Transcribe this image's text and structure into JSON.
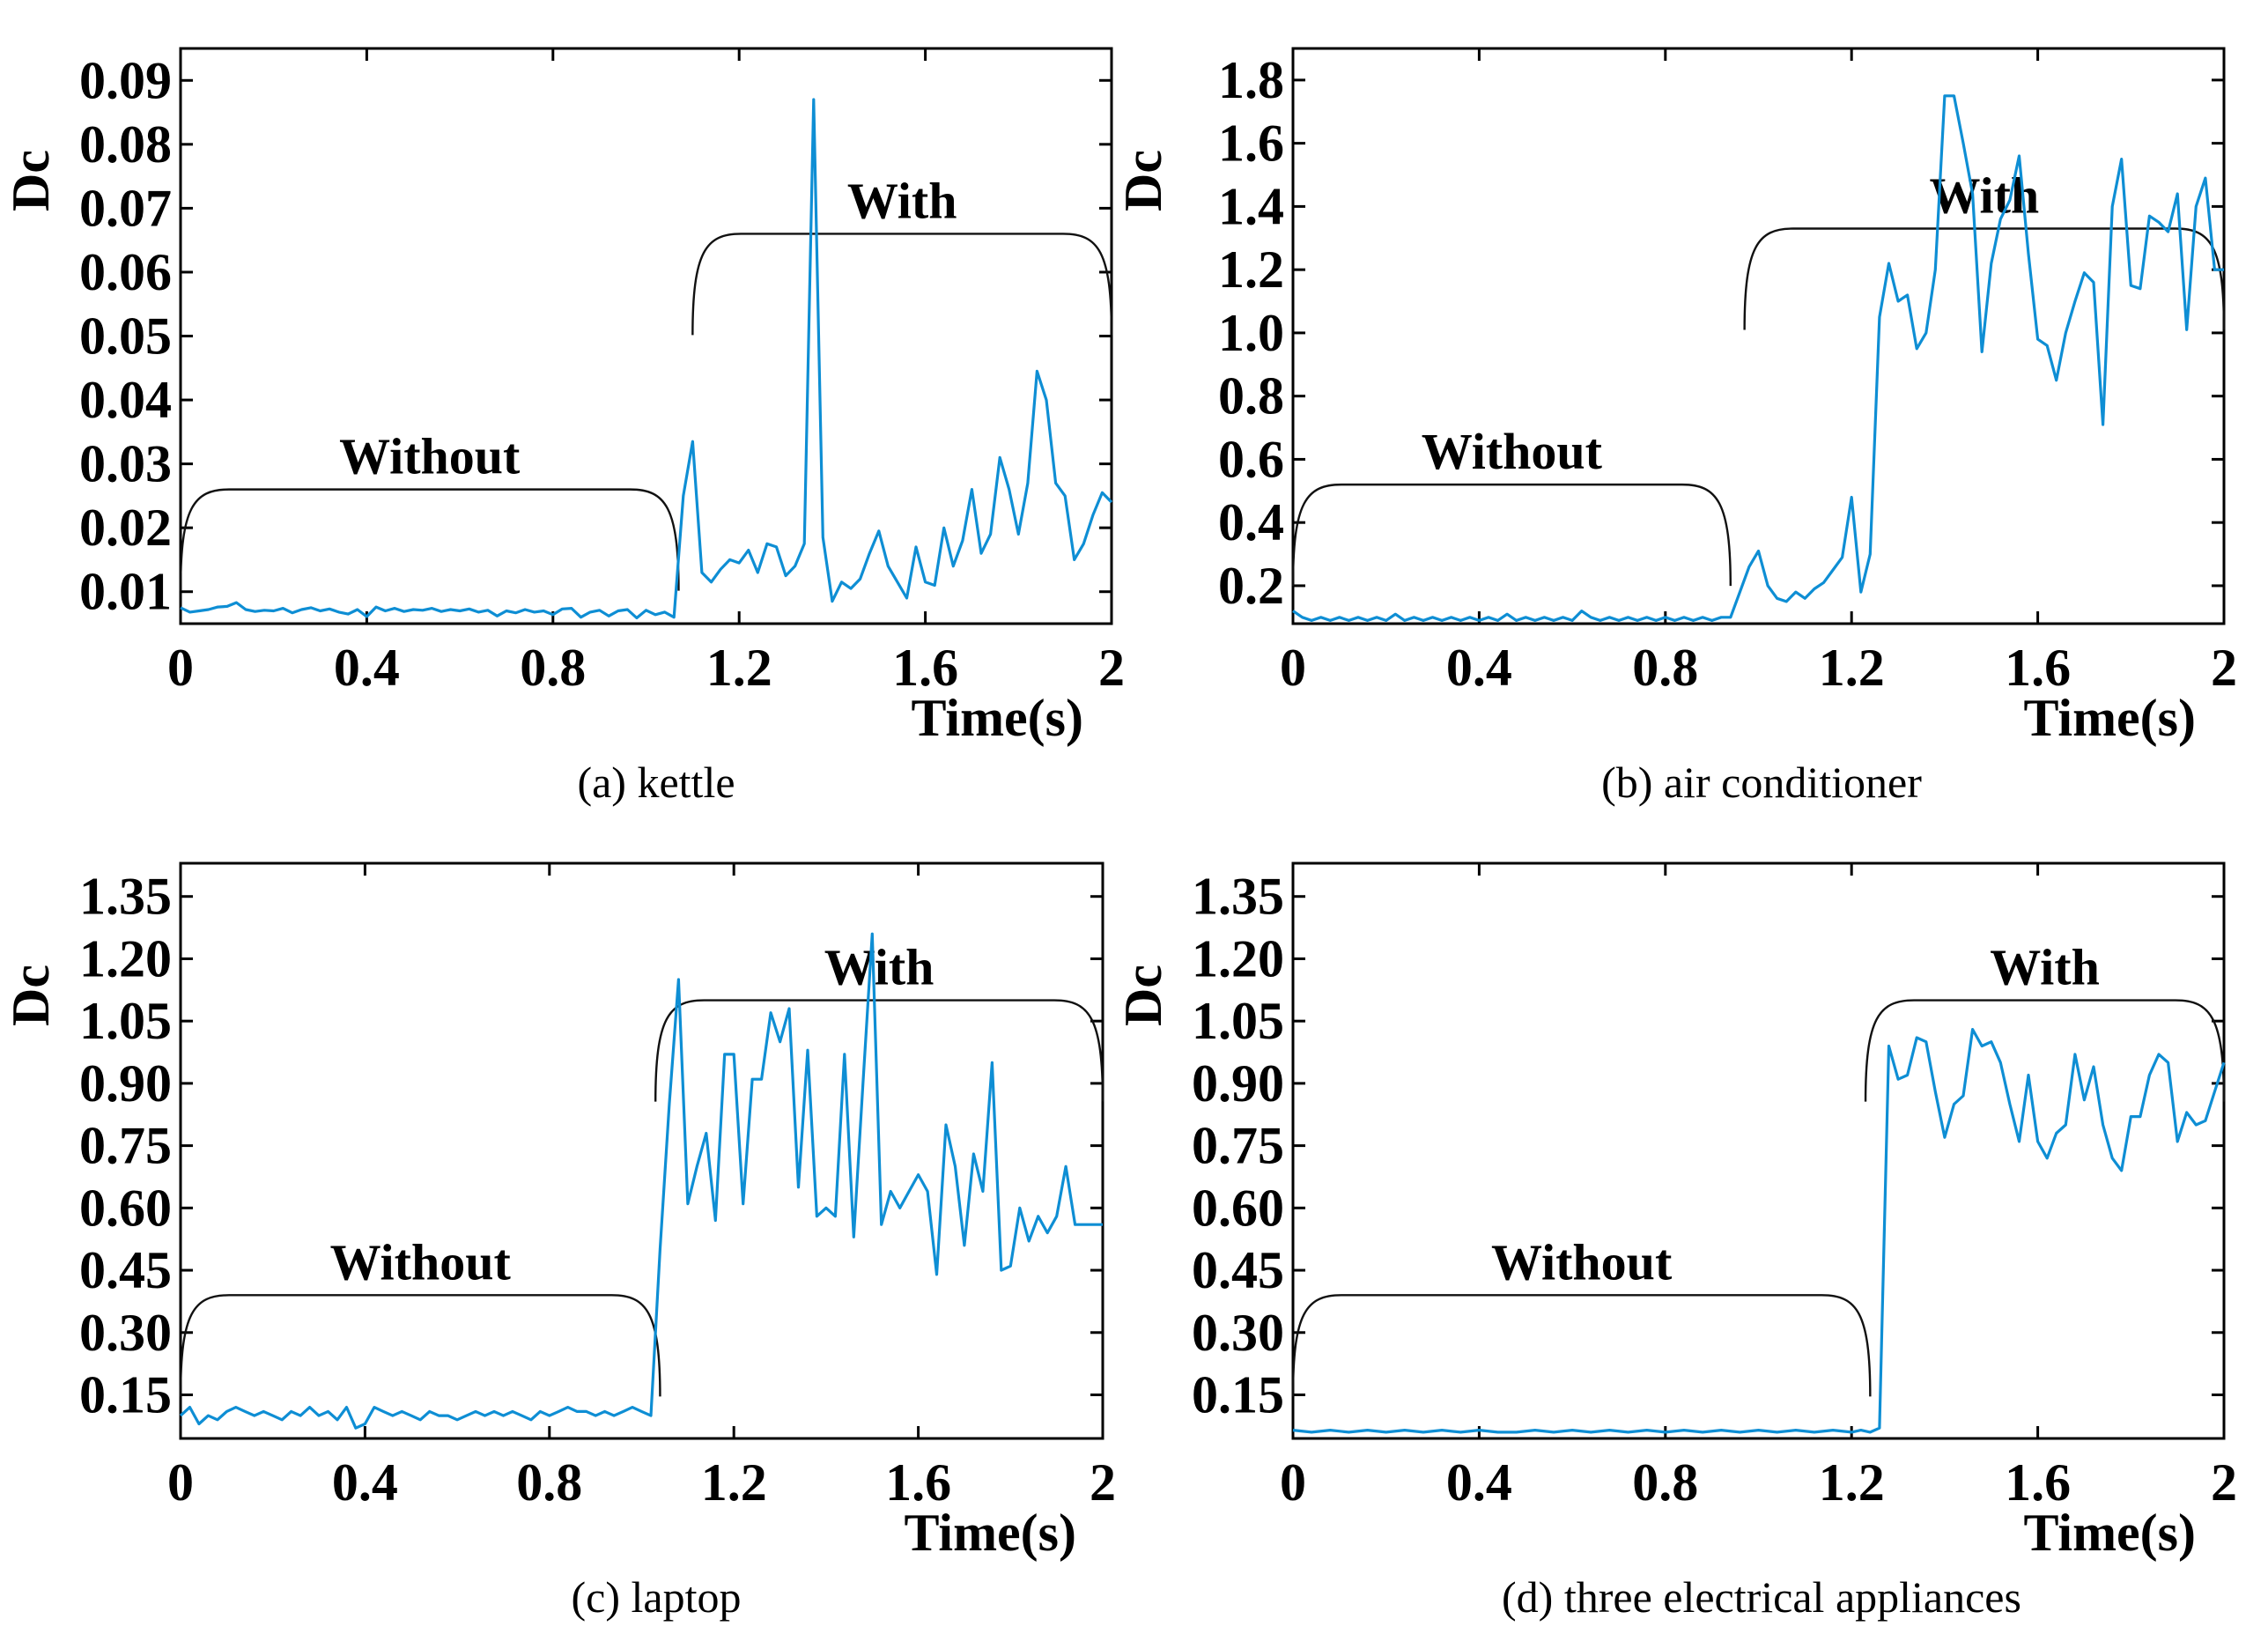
{
  "chart_data": [
    {
      "type": "line",
      "caption": "(a) kettle",
      "xlabel": "Time(s)",
      "ylabel": "Dc",
      "xlim": [
        0,
        2
      ],
      "ylim": [
        0.005,
        0.095
      ],
      "xticks": [
        0,
        0.4,
        0.8,
        1.2,
        1.6,
        2
      ],
      "xtick_labels": [
        "0",
        "0.4",
        "0.8",
        "1.2",
        "1.6",
        "2"
      ],
      "yticks": [
        0.01,
        0.02,
        0.03,
        0.04,
        0.05,
        0.06,
        0.07,
        0.08,
        0.09
      ],
      "ytick_labels": [
        "0.01",
        "0.02",
        "0.03",
        "0.04",
        "0.05",
        "0.06",
        "0.07",
        "0.08",
        "0.09"
      ],
      "annotations": [
        {
          "text": "Without",
          "x_start": 0,
          "x_end": 1.07,
          "y": 0.026
        },
        {
          "text": "With",
          "x_start": 1.1,
          "x_end": 2.0,
          "y": 0.066
        }
      ],
      "series": [
        {
          "name": "Dc",
          "x": [
            0,
            0.02,
            0.04,
            0.06,
            0.08,
            0.1,
            0.12,
            0.14,
            0.16,
            0.18,
            0.2,
            0.22,
            0.24,
            0.26,
            0.28,
            0.3,
            0.32,
            0.34,
            0.36,
            0.38,
            0.4,
            0.42,
            0.44,
            0.46,
            0.48,
            0.5,
            0.52,
            0.54,
            0.56,
            0.58,
            0.6,
            0.62,
            0.64,
            0.66,
            0.68,
            0.7,
            0.72,
            0.74,
            0.76,
            0.78,
            0.8,
            0.82,
            0.84,
            0.86,
            0.88,
            0.9,
            0.92,
            0.94,
            0.96,
            0.98,
            1.0,
            1.02,
            1.04,
            1.06,
            1.08,
            1.1,
            1.12,
            1.14,
            1.16,
            1.18,
            1.2,
            1.22,
            1.24,
            1.26,
            1.28,
            1.3,
            1.32,
            1.34,
            1.36,
            1.38,
            1.4,
            1.42,
            1.44,
            1.46,
            1.48,
            1.5,
            1.52,
            1.54,
            1.56,
            1.58,
            1.6,
            1.62,
            1.64,
            1.66,
            1.68,
            1.7,
            1.72,
            1.74,
            1.76,
            1.78,
            1.8,
            1.82,
            1.84,
            1.86,
            1.88,
            1.9,
            1.92,
            1.94,
            1.96,
            1.98,
            2.0
          ],
          "values": [
            0.0075,
            0.0068,
            0.007,
            0.0072,
            0.0076,
            0.0077,
            0.0083,
            0.0072,
            0.0069,
            0.0071,
            0.007,
            0.0074,
            0.0067,
            0.0072,
            0.0075,
            0.007,
            0.0073,
            0.0068,
            0.0065,
            0.0072,
            0.0061,
            0.0076,
            0.007,
            0.0074,
            0.0069,
            0.0072,
            0.0071,
            0.0074,
            0.0069,
            0.0072,
            0.007,
            0.0073,
            0.0068,
            0.0071,
            0.0062,
            0.007,
            0.0067,
            0.0072,
            0.0068,
            0.007,
            0.0064,
            0.0073,
            0.0074,
            0.006,
            0.0068,
            0.0071,
            0.0062,
            0.007,
            0.0072,
            0.0059,
            0.0071,
            0.0064,
            0.0068,
            0.006,
            0.025,
            0.0335,
            0.013,
            0.0115,
            0.0135,
            0.015,
            0.0145,
            0.0165,
            0.013,
            0.0175,
            0.017,
            0.0125,
            0.014,
            0.0175,
            0.087,
            0.0185,
            0.0085,
            0.0115,
            0.0105,
            0.012,
            0.016,
            0.0195,
            0.014,
            0.0115,
            0.009,
            0.017,
            0.0115,
            0.011,
            0.02,
            0.014,
            0.018,
            0.026,
            0.016,
            0.019,
            0.031,
            0.026,
            0.019,
            0.027,
            0.0445,
            0.04,
            0.027,
            0.025,
            0.015,
            0.0175,
            0.022,
            0.0255,
            0.024
          ]
        }
      ]
    },
    {
      "type": "line",
      "caption": "(b) air conditioner",
      "xlabel": "Time(s)",
      "ylabel": "Dc",
      "xlim": [
        0,
        2
      ],
      "ylim": [
        0.08,
        1.9
      ],
      "xticks": [
        0,
        0.4,
        0.8,
        1.2,
        1.6,
        2
      ],
      "xtick_labels": [
        "0",
        "0.4",
        "0.8",
        "1.2",
        "1.6",
        "2"
      ],
      "yticks": [
        0.2,
        0.4,
        0.6,
        0.8,
        1.0,
        1.2,
        1.4,
        1.6,
        1.8
      ],
      "ytick_labels": [
        "0.2",
        "0.4",
        "0.6",
        "0.8",
        "1.0",
        "1.2",
        "1.4",
        "1.6",
        "1.8"
      ],
      "annotations": [
        {
          "text": "Without",
          "x_start": 0,
          "x_end": 0.94,
          "y": 0.52
        },
        {
          "text": "With",
          "x_start": 0.97,
          "x_end": 2.0,
          "y": 1.33
        }
      ],
      "series": [
        {
          "name": "Dc",
          "x": [
            0,
            0.02,
            0.04,
            0.06,
            0.08,
            0.1,
            0.12,
            0.14,
            0.16,
            0.18,
            0.2,
            0.22,
            0.24,
            0.26,
            0.28,
            0.3,
            0.32,
            0.34,
            0.36,
            0.38,
            0.4,
            0.42,
            0.44,
            0.46,
            0.48,
            0.5,
            0.52,
            0.54,
            0.56,
            0.58,
            0.6,
            0.62,
            0.64,
            0.66,
            0.68,
            0.7,
            0.72,
            0.74,
            0.76,
            0.78,
            0.8,
            0.82,
            0.84,
            0.86,
            0.88,
            0.9,
            0.92,
            0.94,
            0.96,
            0.98,
            1.0,
            1.02,
            1.04,
            1.06,
            1.08,
            1.1,
            1.12,
            1.14,
            1.16,
            1.18,
            1.2,
            1.22,
            1.24,
            1.26,
            1.28,
            1.3,
            1.32,
            1.34,
            1.36,
            1.38,
            1.4,
            1.42,
            1.44,
            1.46,
            1.48,
            1.5,
            1.52,
            1.54,
            1.56,
            1.58,
            1.6,
            1.62,
            1.64,
            1.66,
            1.68,
            1.7,
            1.72,
            1.74,
            1.76,
            1.78,
            1.8,
            1.82,
            1.84,
            1.86,
            1.88,
            1.9,
            1.92,
            1.94,
            1.96,
            1.98,
            2.0
          ],
          "values": [
            0.12,
            0.1,
            0.09,
            0.1,
            0.09,
            0.1,
            0.09,
            0.1,
            0.09,
            0.1,
            0.09,
            0.11,
            0.09,
            0.1,
            0.09,
            0.1,
            0.09,
            0.1,
            0.09,
            0.1,
            0.09,
            0.1,
            0.09,
            0.11,
            0.09,
            0.1,
            0.09,
            0.1,
            0.09,
            0.1,
            0.09,
            0.12,
            0.1,
            0.09,
            0.1,
            0.09,
            0.1,
            0.09,
            0.1,
            0.09,
            0.1,
            0.09,
            0.1,
            0.09,
            0.1,
            0.09,
            0.1,
            0.1,
            0.18,
            0.26,
            0.31,
            0.2,
            0.16,
            0.15,
            0.18,
            0.16,
            0.19,
            0.21,
            0.25,
            0.29,
            0.48,
            0.18,
            0.3,
            1.05,
            1.22,
            1.1,
            1.12,
            0.95,
            1.0,
            1.2,
            1.75,
            1.75,
            1.6,
            1.44,
            0.94,
            1.22,
            1.36,
            1.42,
            1.56,
            1.25,
            0.98,
            0.96,
            0.85,
            1.0,
            1.1,
            1.19,
            1.16,
            0.71,
            1.4,
            1.55,
            1.15,
            1.14,
            1.37,
            1.35,
            1.32,
            1.44,
            1.01,
            1.4,
            1.49,
            1.2,
            1.2
          ]
        }
      ]
    },
    {
      "type": "line",
      "caption": "(c) laptop",
      "xlabel": "Time(s)",
      "ylabel": "Dc",
      "xlim": [
        0,
        2
      ],
      "ylim": [
        0.045,
        1.43
      ],
      "xticks": [
        0,
        0.4,
        0.8,
        1.2,
        1.6,
        2
      ],
      "xtick_labels": [
        "0",
        "0.4",
        "0.8",
        "1.2",
        "1.6",
        "2"
      ],
      "yticks": [
        0.15,
        0.3,
        0.45,
        0.6,
        0.75,
        0.9,
        1.05,
        1.2,
        1.35
      ],
      "ytick_labels": [
        "0.15",
        "0.30",
        "0.45",
        "0.60",
        "0.75",
        "0.90",
        "1.05",
        "1.20",
        "1.35"
      ],
      "annotations": [
        {
          "text": "Without",
          "x_start": 0,
          "x_end": 1.04,
          "y": 0.39
        },
        {
          "text": "With",
          "x_start": 1.03,
          "x_end": 2.0,
          "y": 1.1
        }
      ],
      "series": [
        {
          "name": "Dc",
          "x": [
            0,
            0.02,
            0.04,
            0.06,
            0.08,
            0.1,
            0.12,
            0.14,
            0.16,
            0.18,
            0.2,
            0.22,
            0.24,
            0.26,
            0.28,
            0.3,
            0.32,
            0.34,
            0.36,
            0.38,
            0.4,
            0.42,
            0.44,
            0.46,
            0.48,
            0.5,
            0.52,
            0.54,
            0.56,
            0.58,
            0.6,
            0.62,
            0.64,
            0.66,
            0.68,
            0.7,
            0.72,
            0.74,
            0.76,
            0.78,
            0.8,
            0.82,
            0.84,
            0.86,
            0.88,
            0.9,
            0.92,
            0.94,
            0.96,
            0.98,
            1.0,
            1.02,
            1.04,
            1.06,
            1.08,
            1.1,
            1.12,
            1.14,
            1.16,
            1.18,
            1.2,
            1.22,
            1.24,
            1.26,
            1.28,
            1.3,
            1.32,
            1.34,
            1.36,
            1.38,
            1.4,
            1.42,
            1.44,
            1.46,
            1.48,
            1.5,
            1.52,
            1.54,
            1.56,
            1.58,
            1.6,
            1.62,
            1.64,
            1.66,
            1.68,
            1.7,
            1.72,
            1.74,
            1.76,
            1.78,
            1.8,
            1.82,
            1.84,
            1.86,
            1.88,
            1.9,
            1.92,
            1.94,
            1.96,
            1.98,
            2.0
          ],
          "values": [
            0.1,
            0.12,
            0.08,
            0.1,
            0.09,
            0.11,
            0.12,
            0.11,
            0.1,
            0.11,
            0.1,
            0.09,
            0.11,
            0.1,
            0.12,
            0.1,
            0.11,
            0.09,
            0.12,
            0.07,
            0.08,
            0.12,
            0.11,
            0.1,
            0.11,
            0.1,
            0.09,
            0.11,
            0.1,
            0.1,
            0.09,
            0.1,
            0.11,
            0.1,
            0.11,
            0.1,
            0.11,
            0.1,
            0.09,
            0.11,
            0.1,
            0.11,
            0.12,
            0.11,
            0.11,
            0.1,
            0.11,
            0.1,
            0.11,
            0.12,
            0.11,
            0.1,
            0.5,
            0.85,
            1.15,
            0.61,
            0.7,
            0.78,
            0.57,
            0.97,
            0.97,
            0.61,
            0.91,
            0.91,
            1.07,
            1.0,
            1.08,
            0.65,
            0.98,
            0.58,
            0.6,
            0.58,
            0.97,
            0.53,
            0.9,
            1.26,
            0.56,
            0.64,
            0.6,
            0.64,
            0.68,
            0.64,
            0.44,
            0.8,
            0.7,
            0.51,
            0.73,
            0.64,
            0.95,
            0.45,
            0.46,
            0.6,
            0.52,
            0.58,
            0.54,
            0.58,
            0.7,
            0.56,
            0.56,
            0.56,
            0.56
          ]
        }
      ]
    },
    {
      "type": "line",
      "caption": "(d) three electrical appliances",
      "xlabel": "Time(s)",
      "ylabel": "Dc",
      "xlim": [
        0,
        2
      ],
      "ylim": [
        0.045,
        1.43
      ],
      "xticks": [
        0,
        0.4,
        0.8,
        1.2,
        1.6,
        2
      ],
      "xtick_labels": [
        "0",
        "0.4",
        "0.8",
        "1.2",
        "1.6",
        "2"
      ],
      "yticks": [
        0.15,
        0.3,
        0.45,
        0.6,
        0.75,
        0.9,
        1.05,
        1.2,
        1.35
      ],
      "ytick_labels": [
        "0.15",
        "0.30",
        "0.45",
        "0.60",
        "0.75",
        "0.90",
        "1.05",
        "1.20",
        "1.35"
      ],
      "annotations": [
        {
          "text": "Without",
          "x_start": 0,
          "x_end": 1.24,
          "y": 0.39
        },
        {
          "text": "With",
          "x_start": 1.23,
          "x_end": 2.0,
          "y": 1.1
        }
      ],
      "series": [
        {
          "name": "Dc",
          "x": [
            0,
            0.04,
            0.08,
            0.12,
            0.16,
            0.2,
            0.24,
            0.28,
            0.32,
            0.36,
            0.4,
            0.44,
            0.48,
            0.52,
            0.56,
            0.6,
            0.64,
            0.68,
            0.72,
            0.76,
            0.8,
            0.84,
            0.88,
            0.92,
            0.96,
            1.0,
            1.04,
            1.08,
            1.12,
            1.16,
            1.2,
            1.22,
            1.24,
            1.26,
            1.28,
            1.3,
            1.32,
            1.34,
            1.36,
            1.38,
            1.4,
            1.42,
            1.44,
            1.46,
            1.48,
            1.5,
            1.52,
            1.54,
            1.56,
            1.58,
            1.6,
            1.62,
            1.64,
            1.66,
            1.68,
            1.7,
            1.72,
            1.74,
            1.76,
            1.78,
            1.8,
            1.82,
            1.84,
            1.86,
            1.88,
            1.9,
            1.92,
            1.94,
            1.96,
            1.98,
            2.0
          ],
          "values": [
            0.065,
            0.06,
            0.065,
            0.06,
            0.065,
            0.06,
            0.065,
            0.06,
            0.065,
            0.06,
            0.065,
            0.06,
            0.06,
            0.065,
            0.06,
            0.065,
            0.06,
            0.065,
            0.06,
            0.065,
            0.06,
            0.065,
            0.06,
            0.065,
            0.06,
            0.065,
            0.06,
            0.065,
            0.06,
            0.065,
            0.06,
            0.065,
            0.06,
            0.07,
            0.99,
            0.91,
            0.92,
            1.01,
            1.0,
            0.88,
            0.77,
            0.85,
            0.87,
            1.03,
            0.99,
            1.0,
            0.95,
            0.85,
            0.76,
            0.92,
            0.76,
            0.72,
            0.78,
            0.8,
            0.97,
            0.86,
            0.94,
            0.8,
            0.72,
            0.69,
            0.82,
            0.82,
            0.92,
            0.97,
            0.95,
            0.76,
            0.83,
            0.8,
            0.81,
            0.88,
            0.95
          ]
        }
      ]
    }
  ]
}
